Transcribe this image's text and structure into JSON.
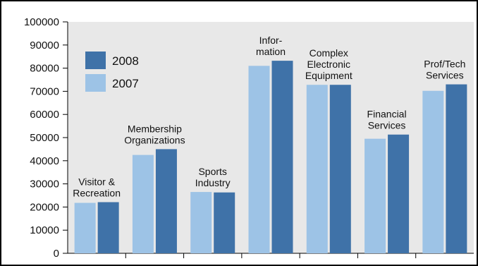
{
  "chart_data": {
    "type": "bar",
    "categories": [
      [
        "Visitor &",
        "Recreation"
      ],
      [
        "Membership",
        "Organizations"
      ],
      [
        "Sports",
        "Industry"
      ],
      [
        "Infor-",
        "mation"
      ],
      [
        "Complex",
        "Electronic",
        "Equipment"
      ],
      [
        "Financial",
        "Services"
      ],
      [
        "Prof/Tech",
        "Services"
      ]
    ],
    "series": [
      {
        "name": "2007",
        "color": "#9dc3e6",
        "values": [
          21800,
          42500,
          26500,
          81000,
          72800,
          49500,
          70200
        ]
      },
      {
        "name": "2008",
        "color": "#3f72a8",
        "values": [
          22100,
          45000,
          26300,
          83200,
          72800,
          51300,
          73000
        ]
      }
    ],
    "ylim": [
      0,
      100000
    ],
    "yticks": [
      "0",
      "10000",
      "20000",
      "30000",
      "40000",
      "50000",
      "60000",
      "70000",
      "80000",
      "90000",
      "100000"
    ],
    "plot_background": "#e8e8e8",
    "grid": false,
    "legend_order": [
      "2008",
      "2007"
    ],
    "legend_position": "top-left"
  }
}
